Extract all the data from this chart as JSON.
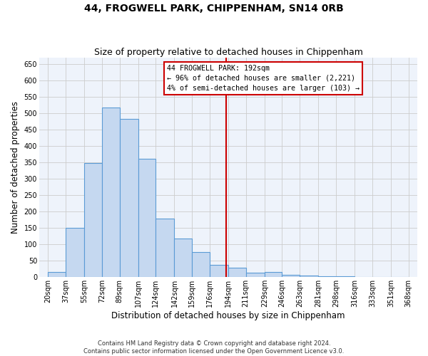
{
  "title": "44, FROGWELL PARK, CHIPPENHAM, SN14 0RB",
  "subtitle": "Size of property relative to detached houses in Chippenham",
  "xlabel": "Distribution of detached houses by size in Chippenham",
  "ylabel": "Number of detached properties",
  "footer_line1": "Contains HM Land Registry data © Crown copyright and database right 2024.",
  "footer_line2": "Contains public sector information licensed under the Open Government Licence v3.0.",
  "bar_labels": [
    "20sqm",
    "37sqm",
    "55sqm",
    "72sqm",
    "89sqm",
    "107sqm",
    "124sqm",
    "142sqm",
    "159sqm",
    "176sqm",
    "194sqm",
    "211sqm",
    "229sqm",
    "246sqm",
    "263sqm",
    "281sqm",
    "298sqm",
    "316sqm",
    "333sqm",
    "351sqm",
    "368sqm"
  ],
  "bar_values": [
    15,
    150,
    347,
    517,
    483,
    360,
    179,
    118,
    77,
    38,
    29,
    13,
    15,
    7,
    4,
    2,
    2,
    1,
    1,
    1
  ],
  "bar_color": "#c5d8f0",
  "bar_edge_color": "#5b9bd5",
  "property_line_x": 192,
  "property_line_color": "#cc0000",
  "annotation_text": "44 FROGWELL PARK: 192sqm\n← 96% of detached houses are smaller (2,221)\n4% of semi-detached houses are larger (103) →",
  "annotation_box_color": "#cc0000",
  "annotation_text_color": "#000000",
  "annotation_bg_color": "#ffffff",
  "ylim": [
    0,
    670
  ],
  "yticks": [
    0,
    50,
    100,
    150,
    200,
    250,
    300,
    350,
    400,
    450,
    500,
    550,
    600,
    650
  ],
  "grid_color": "#cccccc",
  "background_color": "#eef3fb",
  "title_fontsize": 10,
  "subtitle_fontsize": 9,
  "tick_fontsize": 7,
  "label_fontsize": 8.5
}
